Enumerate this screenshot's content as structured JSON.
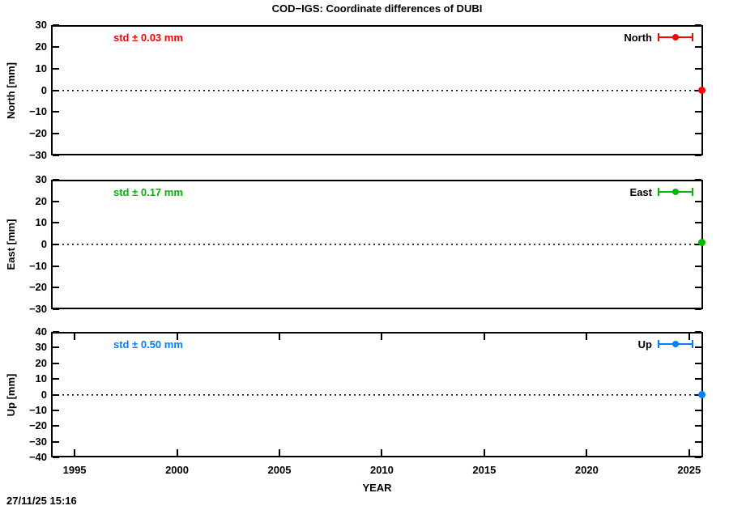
{
  "title": "COD−IGS: Coordinate differences of DUBI",
  "timestamp": "27/11/25 15:16",
  "frame_color": "#000000",
  "chart_data": {
    "type": "scatter",
    "title": "COD−IGS: Coordinate differences of DUBI",
    "xlabel": "YEAR",
    "x_axis": {
      "lim": [
        1993.85,
        2025.68
      ],
      "ticks": [
        1995,
        2000,
        2005,
        2010,
        2015,
        2020,
        2025
      ]
    },
    "grid": false,
    "panels": [
      {
        "name": "North",
        "ylabel": "North [mm]",
        "ylim": [
          -30,
          30
        ],
        "yticks": [
          30,
          20,
          10,
          0,
          -10,
          -20,
          -30
        ],
        "std_label": "std ± 0.03 mm",
        "legend_label": "North",
        "legend_position": "top-right-inside",
        "color": "#ff0000",
        "zero_line_y": 0,
        "show_xticks": false,
        "points": [
          {
            "x": 2025.62,
            "y": 0.0
          }
        ]
      },
      {
        "name": "East",
        "ylabel": "East [mm]",
        "ylim": [
          -30,
          30
        ],
        "yticks": [
          30,
          20,
          10,
          0,
          -10,
          -20,
          -30
        ],
        "std_label": "std ± 0.17 mm",
        "legend_label": "East",
        "legend_position": "top-right-inside",
        "color": "#00b800",
        "zero_line_y": 0,
        "show_xticks": false,
        "points": [
          {
            "x": 2025.62,
            "y": 0.8
          }
        ]
      },
      {
        "name": "Up",
        "ylabel": "Up [mm]",
        "ylim": [
          -40,
          40
        ],
        "yticks": [
          40,
          30,
          20,
          10,
          0,
          -10,
          -20,
          -30,
          -40
        ],
        "std_label": "std ± 0.50 mm",
        "legend_label": "Up",
        "legend_position": "top-right-inside",
        "color": "#0080ff",
        "zero_line_y": 0,
        "show_xticks": true,
        "points": [
          {
            "x": 2025.62,
            "y": 0.0
          }
        ]
      }
    ]
  }
}
